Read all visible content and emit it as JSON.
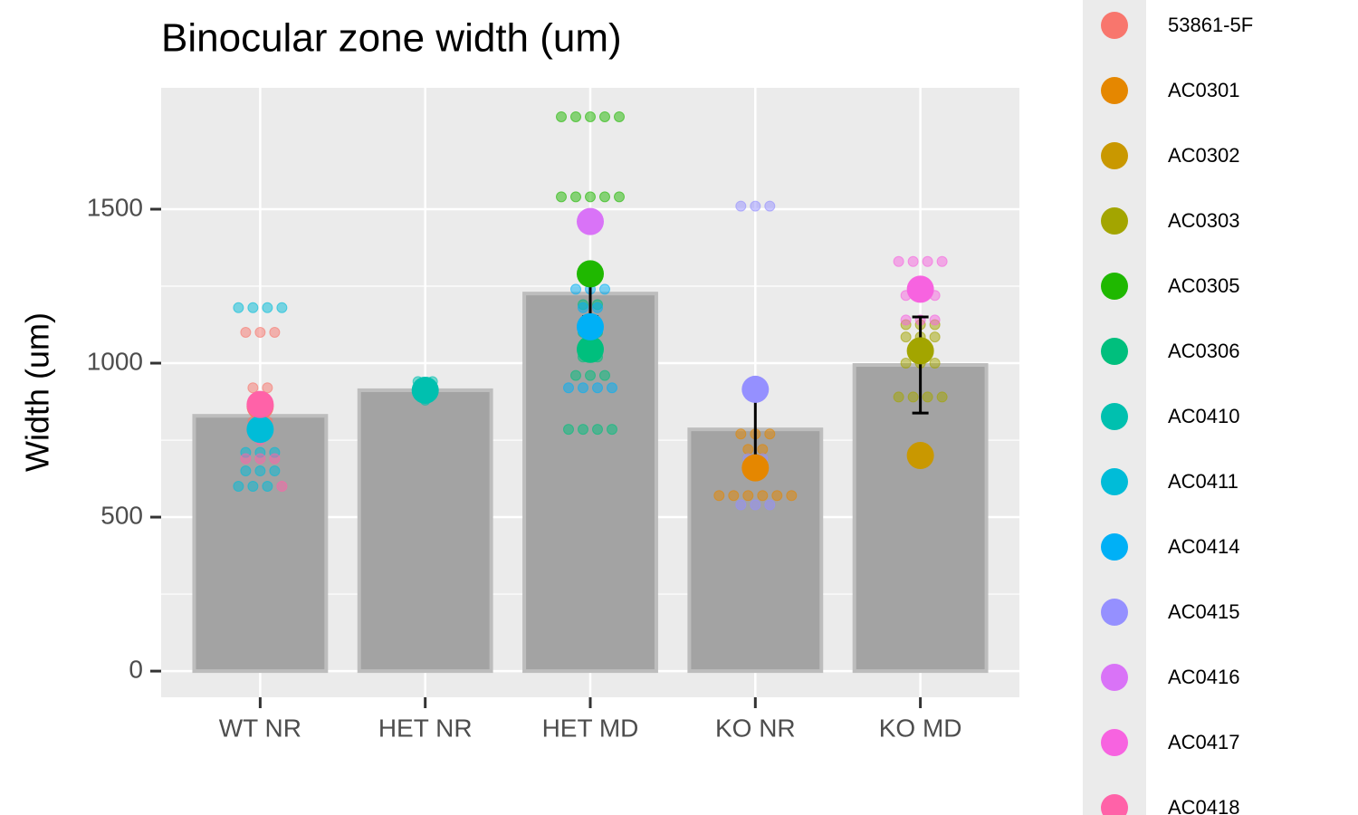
{
  "chart_data": {
    "type": "bar",
    "title": "Binocular zone width (um)",
    "y_label": "Width (um)",
    "categories": [
      "WT NR",
      "HET NR",
      "HET MD",
      "KO NR",
      "KO MD"
    ],
    "values": [
      829,
      912,
      1226,
      785,
      994
    ],
    "errors": [
      40,
      0,
      75,
      130,
      156
    ],
    "color": "#a3a3a3",
    "ylim": [
      -85,
      1894
    ],
    "yticks": [
      0,
      500,
      1000,
      1500
    ],
    "grid": true,
    "legend": "right",
    "series": [
      {
        "name": "53861-5F",
        "color": "#F8766D",
        "values": [
          860,
          null,
          null,
          null,
          null
        ],
        "points": [
          [
            1100,
            1100,
            1100,
            920,
            920,
            810,
            810
          ],
          [],
          [],
          [],
          []
        ]
      },
      {
        "name": "AC0301",
        "color": "#E58700",
        "values": [
          null,
          null,
          null,
          660,
          null
        ],
        "points": [
          [],
          [],
          [],
          [
            770,
            770,
            770,
            720,
            720,
            660,
            660,
            570,
            570,
            570,
            570,
            570,
            570
          ],
          []
        ]
      },
      {
        "name": "AC0302",
        "color": "#C99800",
        "values": [
          null,
          null,
          null,
          null,
          700
        ],
        "points": [
          [],
          [],
          [],
          [],
          []
        ]
      },
      {
        "name": "AC0303",
        "color": "#A3A500",
        "values": [
          null,
          null,
          null,
          null,
          1040
        ],
        "points": [
          [],
          [],
          [],
          [],
          [
            1125,
            1125,
            1125,
            1085,
            1085,
            1085,
            1000,
            1000,
            1000,
            890,
            890,
            890,
            890
          ]
        ]
      },
      {
        "name": "AC0305",
        "color": "#1FB800",
        "values": [
          null,
          null,
          1290,
          null,
          null
        ],
        "points": [
          [],
          [],
          [
            1800,
            1800,
            1800,
            1800,
            1800,
            1540,
            1540,
            1540,
            1540,
            1540
          ],
          [],
          []
        ]
      },
      {
        "name": "AC0306",
        "color": "#00BF7D",
        "values": [
          null,
          null,
          1045,
          null,
          null
        ],
        "points": [
          [],
          [],
          [
            1190,
            1190,
            1100,
            1100,
            1020,
            1020,
            960,
            960,
            960,
            785,
            785,
            785,
            785
          ],
          [],
          []
        ]
      },
      {
        "name": "AC0410",
        "color": "#00C0AF",
        "values": [
          null,
          912,
          null,
          null,
          null
        ],
        "points": [
          [],
          [
            940,
            940,
            880
          ],
          [],
          [],
          []
        ]
      },
      {
        "name": "AC0411",
        "color": "#00BCD8",
        "values": [
          785,
          null,
          null,
          null,
          null
        ],
        "points": [
          [
            1180,
            1180,
            1180,
            1180,
            710,
            710,
            710,
            650,
            650,
            650,
            600,
            600,
            600
          ],
          [],
          [],
          [],
          []
        ]
      },
      {
        "name": "AC0414",
        "color": "#00B0F6",
        "values": [
          null,
          null,
          1118,
          null,
          null
        ],
        "points": [
          [],
          [],
          [
            1240,
            1240,
            1240,
            1180,
            1180,
            920,
            920,
            920,
            920
          ],
          [],
          []
        ]
      },
      {
        "name": "AC0415",
        "color": "#9590FF",
        "values": [
          null,
          null,
          null,
          915,
          null
        ],
        "points": [
          [],
          [],
          [],
          [
            1510,
            1510,
            1510,
            690,
            690,
            540,
            540,
            540
          ],
          []
        ]
      },
      {
        "name": "AC0416",
        "color": "#D973F7",
        "values": [
          null,
          null,
          1460,
          null,
          null
        ],
        "points": [
          [],
          [],
          [],
          [],
          []
        ]
      },
      {
        "name": "AC0417",
        "color": "#F763E0",
        "values": [
          null,
          null,
          null,
          null,
          1240
        ],
        "points": [
          [],
          [],
          [],
          [],
          [
            1330,
            1330,
            1330,
            1330,
            1220,
            1220,
            1220,
            1140,
            1140,
            1140
          ]
        ]
      },
      {
        "name": "AC0418",
        "color": "#FF62A8",
        "values": [
          866,
          null,
          null,
          null,
          null
        ],
        "points": [
          [
            750,
            690,
            690,
            690,
            600
          ],
          [],
          [],
          [],
          []
        ]
      }
    ]
  }
}
